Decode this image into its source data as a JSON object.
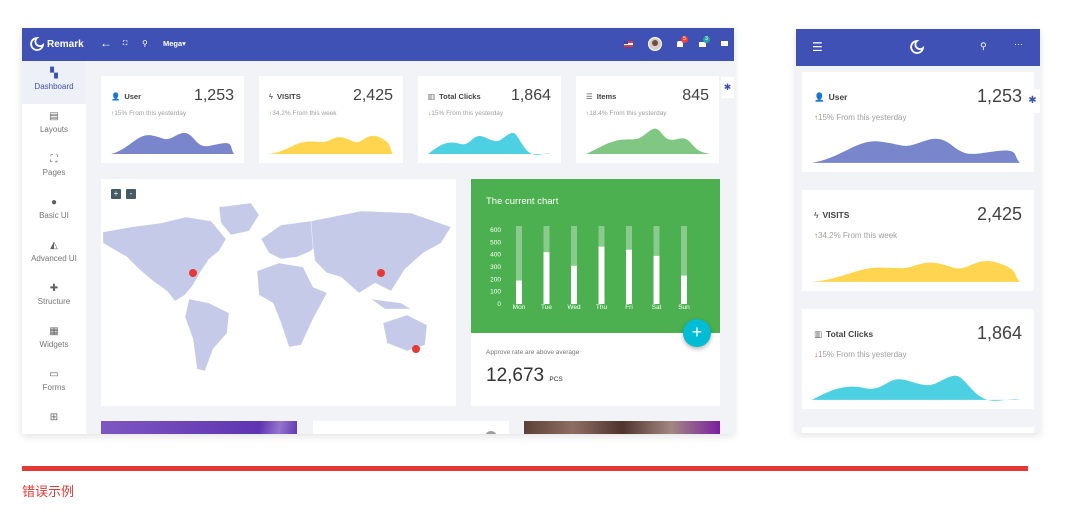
{
  "app": {
    "title": "Remark",
    "mega_label": "Mega"
  },
  "header": {
    "notifications_count": "5",
    "messages_count": "3"
  },
  "sidebar": {
    "items": [
      {
        "label": "Dashboard",
        "icon": "dashboard-icon",
        "active": true
      },
      {
        "label": "Layouts",
        "icon": "layouts-icon"
      },
      {
        "label": "Pages",
        "icon": "pages-icon"
      },
      {
        "label": "Basic UI",
        "icon": "palette-icon"
      },
      {
        "label": "Advanced UI",
        "icon": "paint-bucket-icon"
      },
      {
        "label": "Structure",
        "icon": "puzzle-icon"
      },
      {
        "label": "Widgets",
        "icon": "widgets-icon"
      },
      {
        "label": "Forms",
        "icon": "forms-icon"
      },
      {
        "label": "",
        "icon": "table-icon"
      }
    ]
  },
  "stats": [
    {
      "label": "User",
      "value": "1,253",
      "trend": "up",
      "change": "15% From this yesterday",
      "color": "#7986cb"
    },
    {
      "label": "VISITS",
      "value": "2,425",
      "trend": "up",
      "change": "34.2% From this week",
      "color": "#ffd54f"
    },
    {
      "label": "Total Clicks",
      "value": "1,864",
      "trend": "down",
      "change": "15% From this yesterday",
      "color": "#4dd0e1"
    },
    {
      "label": "Items",
      "value": "845",
      "trend": "up",
      "change": "18.4% From this yesterday",
      "color": "#81c784"
    }
  ],
  "map": {
    "zoom_in": "+",
    "zoom_out": "-",
    "land_color": "#c5cae9",
    "marker_color": "#e53935"
  },
  "chart_card": {
    "title": "The current chart",
    "subtitle": "Approve rate are above average",
    "total": "12,673",
    "unit": "PCS",
    "fab": "+",
    "bg_color": "#4caf50"
  },
  "chart_data": {
    "type": "bar",
    "title": "The current chart",
    "categories": [
      "Mon",
      "Tue",
      "Wed",
      "Thu",
      "Fri",
      "Sat",
      "Sun"
    ],
    "values": [
      190,
      420,
      310,
      465,
      440,
      390,
      230
    ],
    "yticks": [
      "600",
      "500",
      "400",
      "300",
      "200",
      "100",
      "0"
    ],
    "ylim": [
      0,
      600
    ],
    "grid": false
  },
  "footer": {
    "caption": "错误示例",
    "line_color": "#e53935"
  }
}
